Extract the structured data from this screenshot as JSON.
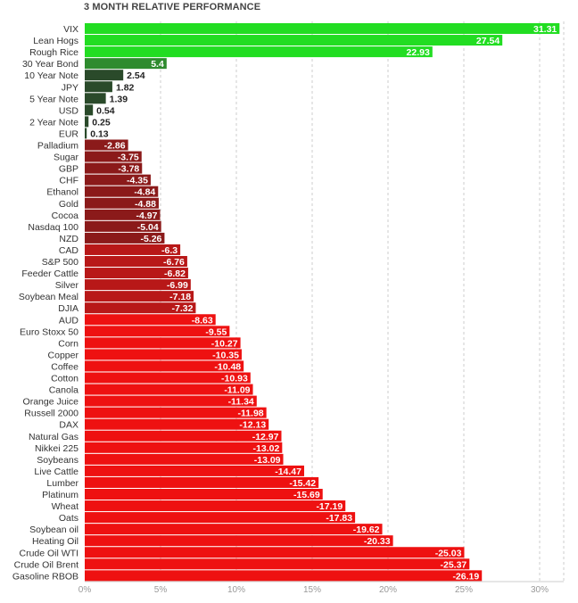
{
  "chart_data": {
    "type": "bar",
    "orientation": "horizontal",
    "title": "3 MONTH RELATIVE PERFORMANCE",
    "xlabel": "",
    "ylabel": "",
    "xlim": [
      0,
      31.5
    ],
    "x_ticks": [
      "0%",
      "5%",
      "10%",
      "15%",
      "20%",
      "25%",
      "30%"
    ],
    "grid": true,
    "categories": [
      "VIX",
      "Lean Hogs",
      "Rough Rice",
      "30 Year Bond",
      "10 Year Note",
      "JPY",
      "5 Year Note",
      "USD",
      "2 Year Note",
      "EUR",
      "Palladium",
      "Sugar",
      "GBP",
      "CHF",
      "Ethanol",
      "Gold",
      "Cocoa",
      "Nasdaq 100",
      "NZD",
      "CAD",
      "S&P 500",
      "Feeder Cattle",
      "Silver",
      "Soybean Meal",
      "DJIA",
      "AUD",
      "Euro Stoxx 50",
      "Corn",
      "Copper",
      "Coffee",
      "Cotton",
      "Canola",
      "Orange Juice",
      "Russell 2000",
      "DAX",
      "Natural Gas",
      "Nikkei 225",
      "Soybeans",
      "Live Cattle",
      "Lumber",
      "Platinum",
      "Wheat",
      "Oats",
      "Soybean oil",
      "Heating Oil",
      "Crude Oil WTI",
      "Crude Oil Brent",
      "Gasoline RBOB"
    ],
    "values": [
      31.31,
      27.54,
      22.93,
      5.4,
      2.54,
      1.82,
      1.39,
      0.54,
      0.25,
      0.13,
      -2.86,
      -3.75,
      -3.78,
      -4.35,
      -4.84,
      -4.88,
      -4.97,
      -5.04,
      -5.26,
      -6.3,
      -6.76,
      -6.82,
      -6.99,
      -7.18,
      -7.32,
      -8.63,
      -9.55,
      -10.27,
      -10.35,
      -10.48,
      -10.93,
      -11.09,
      -11.34,
      -11.98,
      -12.13,
      -12.97,
      -13.02,
      -13.09,
      -14.47,
      -15.42,
      -15.69,
      -17.19,
      -17.83,
      -19.62,
      -20.33,
      -25.03,
      -25.37,
      -26.19
    ],
    "value_labels": [
      "31.31",
      "27.54",
      "22.93",
      "5.4",
      "2.54",
      "1.82",
      "1.39",
      "0.54",
      "0.25",
      "0.13",
      "-2.86",
      "-3.75",
      "-3.78",
      "-4.35",
      "-4.84",
      "-4.88",
      "-4.97",
      "-5.04",
      "-5.26",
      "-6.3",
      "-6.76",
      "-6.82",
      "-6.99",
      "-7.18",
      "-7.32",
      "-8.63",
      "-9.55",
      "-10.27",
      "-10.35",
      "-10.48",
      "-10.93",
      "-11.09",
      "-11.34",
      "-11.98",
      "-12.13",
      "-12.97",
      "-13.02",
      "-13.09",
      "-14.47",
      "-15.42",
      "-15.69",
      "-17.19",
      "-17.83",
      "-19.62",
      "-20.33",
      "-25.03",
      "-25.37",
      "-26.19"
    ],
    "colors": {
      "strong_positive": "#22dd22",
      "positive": "#2e8b2e",
      "weak_positive": "#2a4a2a",
      "weak_negative": "#8b1a1a",
      "medium_negative": "#b81818",
      "strong_negative": "#ee1111",
      "grid": "#cccccc",
      "axis": "#999999"
    }
  }
}
